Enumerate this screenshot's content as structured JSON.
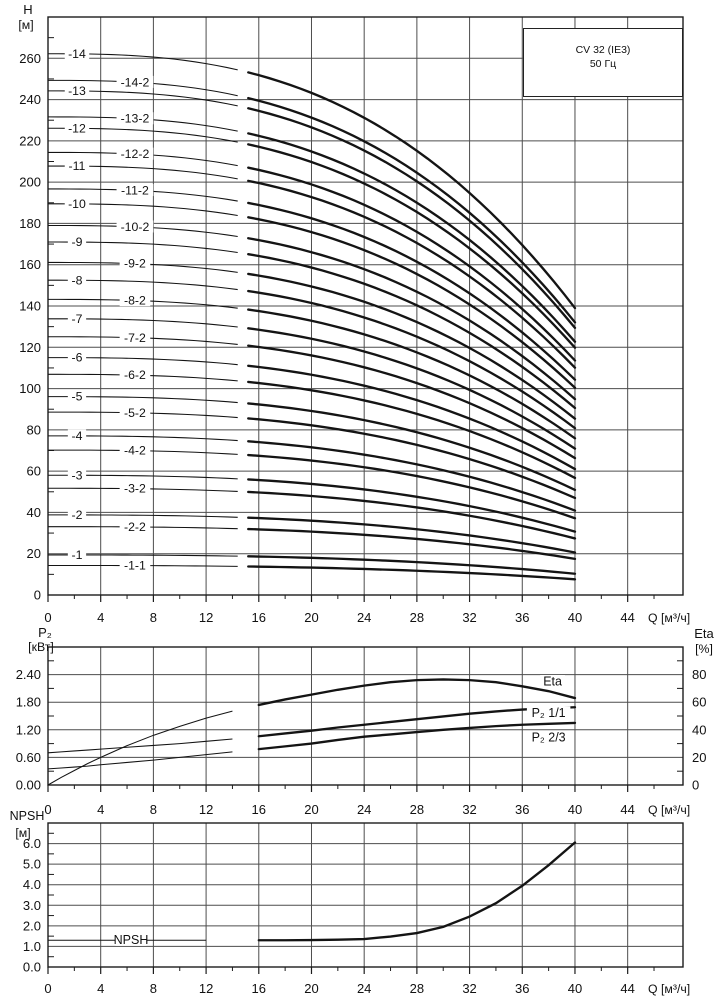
{
  "title_box": {
    "model": "CV 32 (IE3)",
    "frequency": "50 Гц"
  },
  "colors": {
    "grid": "#4d4d4d",
    "frame": "#1c1c1c",
    "curve": "#141414",
    "text": "#111111",
    "background": "#ffffff"
  },
  "chart_data": [
    {
      "id": "head-curves",
      "type": "line",
      "title": "CV 32 (IE3) 50 Гц",
      "ylabel": "H",
      "y_unit": "[м]",
      "xlabel": "Q [м³/ч]",
      "ylim": [
        0,
        280
      ],
      "xlim": [
        0,
        48.2
      ],
      "yticks": [
        0,
        20,
        40,
        60,
        80,
        100,
        120,
        140,
        160,
        180,
        200,
        220,
        240,
        260
      ],
      "xticks": [
        0,
        4,
        8,
        12,
        16,
        20,
        24,
        28,
        32,
        36,
        40,
        44
      ],
      "x_minor_step": 2,
      "y_minor_step": 10,
      "curve_model": {
        "qmax": 40,
        "exponent": 2.7,
        "bold_from": 15
      },
      "series": [
        {
          "label": "-1",
          "h0": 19.4,
          "h40": 10.3,
          "label_q": 2.2
        },
        {
          "label": "-1-1",
          "h0": 14.3,
          "h40": 7.6,
          "label_q": 6.6
        },
        {
          "label": "-2",
          "h0": 38.8,
          "h40": 20.6,
          "label_q": 2.2
        },
        {
          "label": "-2-2",
          "h0": 33.1,
          "h40": 17.5,
          "label_q": 6.6
        },
        {
          "label": "-3",
          "h0": 58.0,
          "h40": 30.7,
          "label_q": 2.2
        },
        {
          "label": "-3-2",
          "h0": 51.7,
          "h40": 27.4,
          "label_q": 6.6
        },
        {
          "label": "-4",
          "h0": 77.1,
          "h40": 40.9,
          "label_q": 2.2
        },
        {
          "label": "-4-2",
          "h0": 70.2,
          "h40": 37.2,
          "label_q": 6.6
        },
        {
          "label": "-5",
          "h0": 96.1,
          "h40": 50.9,
          "label_q": 2.2
        },
        {
          "label": "-5-2",
          "h0": 88.6,
          "h40": 47.0,
          "label_q": 6.6
        },
        {
          "label": "-6",
          "h0": 115.0,
          "h40": 61.0,
          "label_q": 2.2
        },
        {
          "label": "-6-2",
          "h0": 106.9,
          "h40": 56.7,
          "label_q": 6.6
        },
        {
          "label": "-7",
          "h0": 133.8,
          "h40": 70.9,
          "label_q": 2.2
        },
        {
          "label": "-7-2",
          "h0": 125.1,
          "h40": 66.3,
          "label_q": 6.6
        },
        {
          "label": "-8",
          "h0": 152.5,
          "h40": 80.8,
          "label_q": 2.2
        },
        {
          "label": "-8-2",
          "h0": 143.2,
          "h40": 75.9,
          "label_q": 6.6
        },
        {
          "label": "-9",
          "h0": 171.0,
          "h40": 90.6,
          "label_q": 2.2
        },
        {
          "label": "-9-2",
          "h0": 161.1,
          "h40": 85.4,
          "label_q": 6.6
        },
        {
          "label": "-10",
          "h0": 189.5,
          "h40": 100.4,
          "label_q": 2.2
        },
        {
          "label": "-10-2",
          "h0": 179.0,
          "h40": 94.9,
          "label_q": 6.6
        },
        {
          "label": "-11",
          "h0": 207.8,
          "h40": 110.1,
          "label_q": 2.2
        },
        {
          "label": "-11-2",
          "h0": 196.7,
          "h40": 104.3,
          "label_q": 6.6
        },
        {
          "label": "-12",
          "h0": 226.1,
          "h40": 119.8,
          "label_q": 2.2
        },
        {
          "label": "-12-2",
          "h0": 214.4,
          "h40": 113.6,
          "label_q": 6.6
        },
        {
          "label": "-13",
          "h0": 244.2,
          "h40": 129.4,
          "label_q": 2.2
        },
        {
          "label": "-13-2",
          "h0": 231.6,
          "h40": 122.7,
          "label_q": 6.6
        },
        {
          "label": "-14",
          "h0": 262.2,
          "h40": 139.0,
          "label_q": 2.2
        },
        {
          "label": "-14-2",
          "h0": 249.3,
          "h40": 132.1,
          "label_q": 6.6
        }
      ]
    },
    {
      "id": "power-efficiency",
      "type": "line",
      "left_axis": {
        "title": "P₂",
        "unit": "[кВт]",
        "ticks": [
          "0.00",
          "0.60",
          "1.20",
          "1.80",
          "2.40"
        ],
        "max": 3.0,
        "minor_step": 0.3
      },
      "right_axis": {
        "title": "Eta",
        "unit": "[%]",
        "ticks": [
          0,
          20,
          40,
          60,
          80
        ],
        "max": 100,
        "minor_step": 10
      },
      "xlabel": "Q [м³/ч]",
      "xticks": [
        0,
        4,
        8,
        12,
        16,
        20,
        24,
        28,
        32,
        36,
        40,
        44
      ],
      "x_minor_step": 2,
      "bold_from": 15,
      "x": [
        0,
        1,
        2,
        3,
        4,
        6,
        8,
        10,
        12,
        14,
        16,
        18,
        20,
        22,
        24,
        26,
        28,
        30,
        32,
        34,
        36,
        38,
        40
      ],
      "series": [
        {
          "name": "Eta",
          "axis": "right",
          "values": [
            0,
            5.5,
            10.5,
            15.5,
            20,
            28.5,
            36,
            42.5,
            48.5,
            53.5,
            58,
            62,
            65.5,
            69,
            72,
            74.5,
            76,
            76.5,
            76,
            74.5,
            71.5,
            68,
            63
          ],
          "label": {
            "q": 38.3,
            "v": 75
          }
        },
        {
          "name": "P₂ 1/1",
          "axis": "left",
          "values": [
            0.7,
            0.72,
            0.74,
            0.76,
            0.78,
            0.82,
            0.86,
            0.9,
            0.95,
            1.0,
            1.06,
            1.12,
            1.18,
            1.25,
            1.31,
            1.37,
            1.43,
            1.49,
            1.55,
            1.6,
            1.64,
            1.67,
            1.69
          ],
          "label": {
            "q": 38,
            "v": 1.57
          }
        },
        {
          "name": "P₂ 2/3",
          "axis": "left",
          "values": [
            0.35,
            0.37,
            0.39,
            0.41,
            0.44,
            0.49,
            0.54,
            0.6,
            0.66,
            0.72,
            0.78,
            0.84,
            0.9,
            0.98,
            1.05,
            1.1,
            1.15,
            1.2,
            1.24,
            1.28,
            1.31,
            1.33,
            1.35
          ],
          "label": {
            "q": 38,
            "v": 1.03
          }
        }
      ]
    },
    {
      "id": "npsh",
      "type": "line",
      "left_axis": {
        "title": "NPSH",
        "unit": "[м]",
        "ticks": [
          "0.0",
          "1.0",
          "2.0",
          "3.0",
          "4.0",
          "5.0",
          "6.0"
        ],
        "max": 7.0,
        "minor_step": 0.5
      },
      "xlabel": "Q [м³/ч]",
      "xticks": [
        0,
        4,
        8,
        12,
        16,
        20,
        24,
        28,
        32,
        36,
        40,
        44
      ],
      "x_minor_step": 2,
      "bold_from": 15,
      "x": [
        0,
        4,
        8,
        12,
        16,
        18,
        20,
        22,
        24,
        26,
        28,
        30,
        32,
        34,
        36,
        38,
        40
      ],
      "series": [
        {
          "name": "NPSH",
          "values": [
            1.3,
            1.3,
            1.3,
            1.3,
            1.3,
            1.3,
            1.31,
            1.33,
            1.36,
            1.48,
            1.65,
            1.95,
            2.45,
            3.1,
            3.95,
            4.95,
            6.05
          ],
          "label": {
            "q": 6.3,
            "v": 1.31
          }
        }
      ]
    }
  ]
}
